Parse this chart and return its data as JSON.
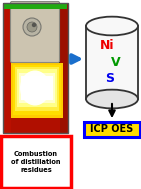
{
  "bg_color": "#ffffff",
  "arrow_color": "#1a6fcc",
  "cylinder_face_color": "#f8f8f8",
  "cylinder_edge_color": "#333333",
  "ni_color": "#ee0000",
  "v_color": "#009900",
  "s_color": "#0000ee",
  "label_ni": "Ni",
  "label_v": "V",
  "label_s": "S",
  "combustion_box_color": "#ff0000",
  "combustion_box_fill": "#ffffff",
  "combustion_text_color": "#000000",
  "combustion_text": "Combustion\nof distillation\nresidues",
  "oes_box_color": "#ffdd00",
  "oes_box_edge": "#0000ff",
  "oes_text": "ICP OES",
  "oes_text_color": "#000000",
  "photo_bg": "#1a0a00",
  "photo_red_left": "#cc1100",
  "photo_red_right": "#aa1100",
  "device_color": "#ccc4b0",
  "green_bar_color": "#22aa11"
}
